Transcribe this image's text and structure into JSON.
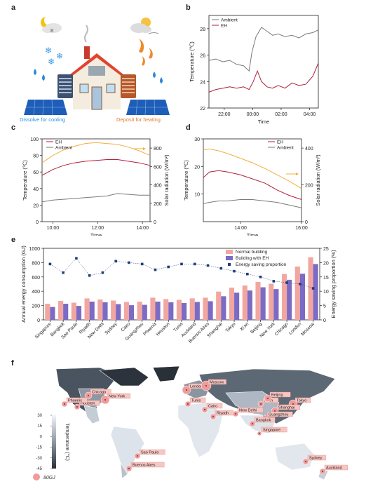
{
  "panels": {
    "a": "a",
    "b": "b",
    "c": "c",
    "d": "d",
    "e": "e",
    "f": "f"
  },
  "panel_a": {
    "caption_cool": "Dissolve for cooling",
    "caption_heat": "Deposit for heating",
    "color_cool": "#2b8fd8",
    "color_heat": "#e07a2e"
  },
  "chart_data": [
    {
      "id": "b",
      "type": "line",
      "xlabel": "Time",
      "ylabel": "Temperature (℃)",
      "x_ticks": [
        "22:00",
        "00:00",
        "02:00",
        "04:00"
      ],
      "ylim": [
        22,
        29
      ],
      "y_ticks": [
        22,
        24,
        26,
        28
      ],
      "legend": "top-left",
      "series": [
        {
          "name": "Ambient",
          "color": "#7a7a7a",
          "x": [
            21.0,
            21.5,
            22.0,
            22.5,
            23.0,
            23.5,
            23.9,
            24.1,
            24.4,
            24.8,
            25.2,
            25.6,
            26.0,
            26.5,
            27.0,
            27.5,
            28.0,
            28.5,
            28.9
          ],
          "y": [
            25.6,
            25.7,
            25.5,
            25.6,
            25.3,
            25.2,
            24.8,
            26.2,
            27.4,
            28.1,
            27.8,
            27.5,
            27.6,
            27.4,
            27.5,
            27.3,
            27.6,
            27.7,
            27.9
          ]
        },
        {
          "name": "EH",
          "color": "#b21f3a",
          "x": [
            21.0,
            21.5,
            22.0,
            22.5,
            23.0,
            23.5,
            23.9,
            24.2,
            24.5,
            24.8,
            25.2,
            25.6,
            26.0,
            26.5,
            27.0,
            27.5,
            28.0,
            28.5,
            28.9
          ],
          "y": [
            23.2,
            23.4,
            23.5,
            23.6,
            23.5,
            23.6,
            23.4,
            24.0,
            24.8,
            24.0,
            23.6,
            23.5,
            23.7,
            23.5,
            23.9,
            23.7,
            23.8,
            24.4,
            25.4
          ]
        }
      ]
    },
    {
      "id": "c",
      "type": "line",
      "xlabel": "Time",
      "ylabel": "Temperature (℃)",
      "ylabel_right": "Solar radiation (W/m²)",
      "x_ticks": [
        "10:00",
        "12:00",
        "14:00"
      ],
      "ylim": [
        0,
        100
      ],
      "y_ticks": [
        0,
        20,
        40,
        60,
        80,
        100
      ],
      "ylim_right": [
        0,
        900
      ],
      "y_ticks_right": [
        0,
        200,
        400,
        600,
        800
      ],
      "legend": "top-left",
      "series": [
        {
          "name": "EH",
          "color": "#b21f3a",
          "axis": "left",
          "x": [
            9.5,
            10.0,
            10.5,
            11.0,
            11.5,
            12.0,
            12.5,
            13.0,
            13.5,
            14.0,
            14.5
          ],
          "y": [
            56,
            63,
            68,
            71,
            73,
            74,
            75,
            75,
            73,
            71,
            68
          ]
        },
        {
          "name": "Ambient",
          "color": "#7a7a7a",
          "axis": "left",
          "x": [
            9.5,
            10.0,
            10.5,
            11.0,
            11.5,
            12.0,
            12.5,
            13.0,
            13.5,
            14.0,
            14.5
          ],
          "y": [
            24,
            26,
            27,
            28,
            29,
            30,
            31,
            34,
            33,
            32,
            32
          ]
        },
        {
          "name": "Solar radiation",
          "color": "#f0b040",
          "axis": "right",
          "x": [
            9.5,
            10.0,
            10.5,
            11.0,
            11.5,
            12.0,
            12.5,
            13.0,
            13.5,
            14.0,
            14.5
          ],
          "y": [
            640,
            720,
            780,
            820,
            850,
            860,
            850,
            840,
            810,
            770,
            720
          ]
        }
      ]
    },
    {
      "id": "d",
      "type": "line",
      "xlabel": "Time",
      "ylabel": "Temperature (℃)",
      "ylabel_right": "Solar radiation (W/m²)",
      "x_ticks": [
        "14:00",
        "16:00"
      ],
      "ylim": [
        0,
        30
      ],
      "y_ticks": [
        10,
        20,
        30
      ],
      "ylim_right": [
        0,
        450
      ],
      "y_ticks_right": [
        0,
        200,
        400
      ],
      "legend": "top-right",
      "series": [
        {
          "name": "EH",
          "color": "#b21f3a",
          "axis": "left",
          "x": [
            12.8,
            13.0,
            13.3,
            13.6,
            14.0,
            14.4,
            14.8,
            15.2,
            15.6,
            16.0
          ],
          "y": [
            16,
            18,
            18.5,
            18,
            17,
            15.5,
            14,
            11.5,
            9.5,
            8
          ]
        },
        {
          "name": "Ambient",
          "color": "#7a7a7a",
          "axis": "left",
          "x": [
            12.8,
            13.0,
            13.3,
            13.6,
            14.0,
            14.4,
            14.8,
            15.2,
            15.6,
            16.0
          ],
          "y": [
            6.5,
            7,
            7.5,
            7.5,
            8,
            8,
            7.5,
            7,
            6,
            5
          ]
        },
        {
          "name": "Solar radiation",
          "color": "#f0b040",
          "axis": "right",
          "x": [
            12.8,
            13.0,
            13.3,
            13.6,
            14.0,
            14.4,
            14.8,
            15.2,
            15.6,
            16.0
          ],
          "y": [
            390,
            395,
            385,
            370,
            345,
            320,
            290,
            255,
            220,
            180
          ]
        }
      ]
    },
    {
      "id": "e",
      "type": "bar",
      "ylabel": "Annual energy consumption (GJ)",
      "ylabel_right": "Energy saving proportion (%)",
      "ylim": [
        0,
        1000
      ],
      "y_ticks": [
        0,
        200,
        400,
        600,
        800,
        1000
      ],
      "ylim_right": [
        0,
        25
      ],
      "y_ticks_right": [
        0,
        5,
        10,
        15,
        20,
        25
      ],
      "legend": "top-right",
      "categories": [
        "Singapore",
        "Bangkok",
        "Sao Paulo",
        "Riyadh",
        "New Delhi",
        "Sydney",
        "Cairo",
        "Guangzhou",
        "Phoenix",
        "Houston",
        "Tunis",
        "Auckland",
        "Buenos Aires",
        "Shanghai",
        "Tokyo",
        "Xi'an",
        "Beijing",
        "New York",
        "Chicago",
        "London",
        "Moscow"
      ],
      "series": [
        {
          "name": "Normal building",
          "color": "#f2a6a0",
          "axis": "left",
          "values": [
            225,
            265,
            240,
            300,
            285,
            270,
            250,
            255,
            310,
            290,
            280,
            300,
            310,
            395,
            450,
            480,
            530,
            505,
            640,
            745,
            875
          ]
        },
        {
          "name": "Building with EH",
          "color": "#7b6bc4",
          "axis": "left",
          "values": [
            180,
            225,
            195,
            255,
            245,
            220,
            205,
            210,
            255,
            245,
            235,
            250,
            260,
            330,
            380,
            410,
            455,
            430,
            560,
            645,
            780
          ]
        },
        {
          "name": "Energy saving proportion",
          "color": "#1f3d7a",
          "axis": "right",
          "marker": "square",
          "values": [
            19.5,
            16.5,
            21.5,
            15.5,
            16.5,
            20.5,
            20,
            19.5,
            17.5,
            18.5,
            19.5,
            19.5,
            19,
            18,
            17,
            16,
            15,
            13.5,
            13,
            12.5,
            11
          ]
        }
      ]
    }
  ],
  "panel_f": {
    "colorbar_label": "Temperature (℃)",
    "colorbar_ticks": [
      "30",
      "15",
      "0",
      "-15",
      "-30",
      "-45"
    ],
    "size_legend": "80GJ",
    "cities": [
      "Chicago",
      "New York",
      "Houston",
      "Phoenix",
      "London",
      "Moscow",
      "Tunis",
      "Cairo",
      "Riyadh",
      "New Delhi",
      "Xi'an",
      "Beijing",
      "Tokyo",
      "Shanghai",
      "Guangzhou",
      "Bangkok",
      "Singapore",
      "Sao Paulo",
      "Buenos Aires",
      "Sydney",
      "Auckland"
    ]
  }
}
